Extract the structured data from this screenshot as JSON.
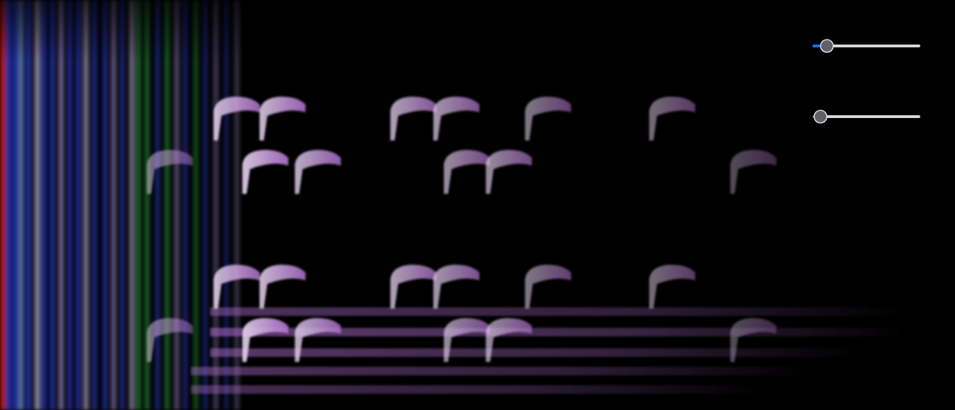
{
  "chart_data": {
    "type": "spectrogram",
    "tick_labels": false,
    "xlim": [
      0,
      10
    ],
    "ylim": [
      0,
      100
    ],
    "color": "#b070d0",
    "notes": [
      {
        "time": 1.56,
        "freqs": [
          61,
          20
        ],
        "intensity": 0.5
      },
      {
        "time": 2.26,
        "freqs": [
          74,
          33
        ],
        "intensity": 0.85
      },
      {
        "time": 2.56,
        "freqs": [
          61,
          20
        ],
        "intensity": 0.9
      },
      {
        "time": 2.74,
        "freqs": [
          74,
          33
        ],
        "intensity": 0.85
      },
      {
        "time": 3.11,
        "freqs": [
          61,
          20
        ],
        "intensity": 0.8
      },
      {
        "time": 4.11,
        "freqs": [
          74,
          33
        ],
        "intensity": 0.75
      },
      {
        "time": 4.56,
        "freqs": [
          74,
          33
        ],
        "intensity": 0.7
      },
      {
        "time": 4.67,
        "freqs": [
          61,
          20
        ],
        "intensity": 0.65
      },
      {
        "time": 5.11,
        "freqs": [
          61,
          20
        ],
        "intensity": 0.65
      },
      {
        "time": 5.52,
        "freqs": [
          74,
          33
        ],
        "intensity": 0.55
      },
      {
        "time": 6.82,
        "freqs": [
          74,
          33
        ],
        "intensity": 0.5
      },
      {
        "time": 7.67,
        "freqs": [
          61,
          20
        ],
        "intensity": 0.35
      }
    ],
    "noise": {
      "times": [
        0.03,
        0.09,
        0.16,
        0.22,
        0.3,
        0.39,
        0.46,
        0.55,
        0.64,
        0.73,
        0.82,
        0.9,
        0.99,
        1.1,
        1.19,
        1.28,
        1.38,
        1.45,
        1.54,
        1.65,
        1.75,
        1.85,
        1.94,
        2.05,
        2.15,
        2.26,
        2.37,
        2.48
      ],
      "colors": [
        "#d02020",
        "#2a3cc8",
        "#2a3cc8",
        "#6a8ad8",
        "#2a3cc8",
        "#b8b0e0",
        "#2a3cc8",
        "#2a3cc8",
        "#9a8ad0",
        "#2a3cc8",
        "#2a3cc8",
        "#b8b0e0",
        "#2a3cc8",
        "#2a3cc8",
        "#9a8ad0",
        "#2a3cc8",
        "#b8b0e0",
        "#2aa040",
        "#2aa040",
        "#2a3cc8",
        "#2aa040",
        "#9a8ad0",
        "#2a3cc8",
        "#2aa040",
        "#2a3cc8",
        "#9a8ad0",
        "#2a3cc8",
        "#9a8ad0"
      ],
      "intensities": [
        0.8,
        0.8,
        0.75,
        0.75,
        0.75,
        0.7,
        0.7,
        0.7,
        0.65,
        0.65,
        0.65,
        0.6,
        0.6,
        0.6,
        0.55,
        0.55,
        0.55,
        0.55,
        0.5,
        0.5,
        0.5,
        0.45,
        0.45,
        0.4,
        0.4,
        0.35,
        0.35,
        0.3
      ]
    },
    "bands": {
      "freqs": [
        24,
        19,
        14,
        9.5,
        5
      ],
      "start": [
        2.2,
        2.2,
        2.2,
        2.0,
        2.0
      ],
      "end": [
        9.5,
        9.5,
        9.0,
        8.5,
        8.0
      ],
      "intensities": [
        0.45,
        0.55,
        0.5,
        0.45,
        0.4
      ]
    }
  },
  "sliders": [
    {
      "value": 0.07,
      "min": 0,
      "max": 1
    },
    {
      "value": 0,
      "min": 0,
      "max": 1
    }
  ]
}
